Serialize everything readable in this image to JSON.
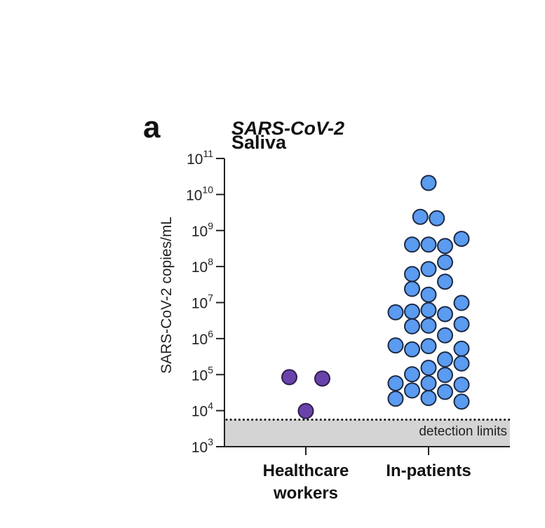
{
  "panel_label": "a",
  "chart_data": {
    "type": "scatter",
    "title": "SARS-CoV-2",
    "subtitle": "Saliva",
    "xlabel": "",
    "ylabel": "SARS-CoV-2 copies/mL",
    "yscale": "log10",
    "ylim_log10": [
      3,
      11
    ],
    "y_ticks": [
      {
        "exp": 11,
        "label_base": "10",
        "label_exp": "11"
      },
      {
        "exp": 10,
        "label_base": "10",
        "label_exp": "10"
      },
      {
        "exp": 9,
        "label_base": "10",
        "label_exp": "9"
      },
      {
        "exp": 8,
        "label_base": "10",
        "label_exp": "8"
      },
      {
        "exp": 7,
        "label_base": "10",
        "label_exp": "7"
      },
      {
        "exp": 6,
        "label_base": "10",
        "label_exp": "6"
      },
      {
        "exp": 5,
        "label_base": "10",
        "label_exp": "5"
      },
      {
        "exp": 4,
        "label_base": "10",
        "label_exp": "4"
      },
      {
        "exp": 3,
        "label_base": "10",
        "label_exp": "3"
      }
    ],
    "categories": [
      {
        "label_lines": [
          "Healthcare",
          "workers"
        ]
      },
      {
        "label_lines": [
          "In-patients"
        ]
      }
    ],
    "detection_limit_log10": 3.75,
    "annotation": "detection limits",
    "grid": false,
    "legend": "none",
    "series": [
      {
        "name": "Healthcare workers",
        "color": "#6a43aa",
        "stroke": "#2d1d4d",
        "points": [
          {
            "jitter": -1,
            "log10": 4.93
          },
          {
            "jitter": 1,
            "log10": 4.89
          },
          {
            "jitter": 0,
            "log10": 3.99
          }
        ]
      },
      {
        "name": "In-patients",
        "color": "#5b9bf0",
        "stroke": "#1c2a44",
        "points": [
          {
            "jitter": 0,
            "log10": 10.32
          },
          {
            "jitter": -0.5,
            "log10": 9.38
          },
          {
            "jitter": 0.5,
            "log10": 9.34
          },
          {
            "jitter": -1,
            "log10": 8.61
          },
          {
            "jitter": 0,
            "log10": 8.61
          },
          {
            "jitter": 1,
            "log10": 8.57
          },
          {
            "jitter": 2,
            "log10": 8.77
          },
          {
            "jitter": 1,
            "log10": 8.12
          },
          {
            "jitter": -1,
            "log10": 7.79
          },
          {
            "jitter": 0,
            "log10": 7.93
          },
          {
            "jitter": 1,
            "log10": 7.58
          },
          {
            "jitter": -1,
            "log10": 7.38
          },
          {
            "jitter": 0,
            "log10": 7.22
          },
          {
            "jitter": 2,
            "log10": 6.99
          },
          {
            "jitter": -2,
            "log10": 6.73
          },
          {
            "jitter": -1,
            "log10": 6.75
          },
          {
            "jitter": 0,
            "log10": 6.79
          },
          {
            "jitter": 1,
            "log10": 6.68
          },
          {
            "jitter": -1,
            "log10": 6.34
          },
          {
            "jitter": 0,
            "log10": 6.36
          },
          {
            "jitter": 2,
            "log10": 6.4
          },
          {
            "jitter": 1,
            "log10": 6.09
          },
          {
            "jitter": -2,
            "log10": 5.81
          },
          {
            "jitter": -1,
            "log10": 5.7
          },
          {
            "jitter": 0,
            "log10": 5.79
          },
          {
            "jitter": 2,
            "log10": 5.72
          },
          {
            "jitter": 1,
            "log10": 5.42
          },
          {
            "jitter": 2,
            "log10": 5.31
          },
          {
            "jitter": 0,
            "log10": 5.19
          },
          {
            "jitter": -1,
            "log10": 5.01
          },
          {
            "jitter": 1,
            "log10": 4.99
          },
          {
            "jitter": -2,
            "log10": 4.76
          },
          {
            "jitter": 0,
            "log10": 4.76
          },
          {
            "jitter": 2,
            "log10": 4.72
          },
          {
            "jitter": -1,
            "log10": 4.56
          },
          {
            "jitter": 1,
            "log10": 4.52
          },
          {
            "jitter": -2,
            "log10": 4.33
          },
          {
            "jitter": 0,
            "log10": 4.35
          },
          {
            "jitter": 2,
            "log10": 4.25
          }
        ]
      }
    ]
  }
}
